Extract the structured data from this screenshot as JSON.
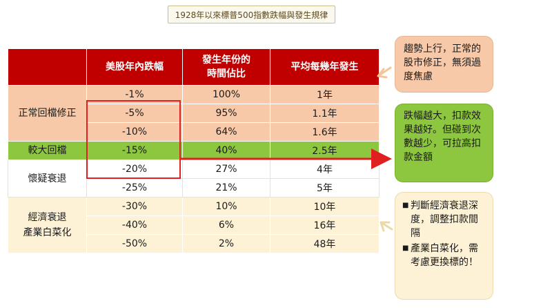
{
  "title": "1928年以來標普500指數跌幅與發生規律",
  "table": {
    "headers": [
      "",
      "美股年內跌幅",
      "發生年份的\n時間佔比",
      "平均每幾年發生"
    ],
    "categories": {
      "normal": "正常回檔修正",
      "large": "較大回檔",
      "recession_doubt": "懷疑衰退",
      "recession": "經濟衰退\n產業白菜化"
    },
    "rows": [
      {
        "drop": "-1%",
        "share": "100%",
        "freq": "1年"
      },
      {
        "drop": "-5%",
        "share": "95%",
        "freq": "1.1年"
      },
      {
        "drop": "-10%",
        "share": "64%",
        "freq": "1.6年"
      },
      {
        "drop": "-15%",
        "share": "40%",
        "freq": "2.5年"
      },
      {
        "drop": "-20%",
        "share": "27%",
        "freq": "4年"
      },
      {
        "drop": "-25%",
        "share": "21%",
        "freq": "5年"
      },
      {
        "drop": "-30%",
        "share": "10%",
        "freq": "10年"
      },
      {
        "drop": "-40%",
        "share": "6%",
        "freq": "16年"
      },
      {
        "drop": "-50%",
        "share": "2%",
        "freq": "48年"
      }
    ]
  },
  "notes": {
    "note1": "趨勢上行，正常的股市修正，無須過度焦慮",
    "note2": "跌幅越大，扣款效果越好。但碰到次數越少，可拉高扣款金額",
    "note3_items": [
      "判斷經濟衰退深度，調整扣款間隔",
      "產業白菜化，需考慮更換標的！"
    ]
  },
  "colors": {
    "header": "#c00000",
    "normal": "#f8c9a8",
    "large": "#8dc63f",
    "cream": "#fdf1d6",
    "highlight": "#e02020"
  }
}
